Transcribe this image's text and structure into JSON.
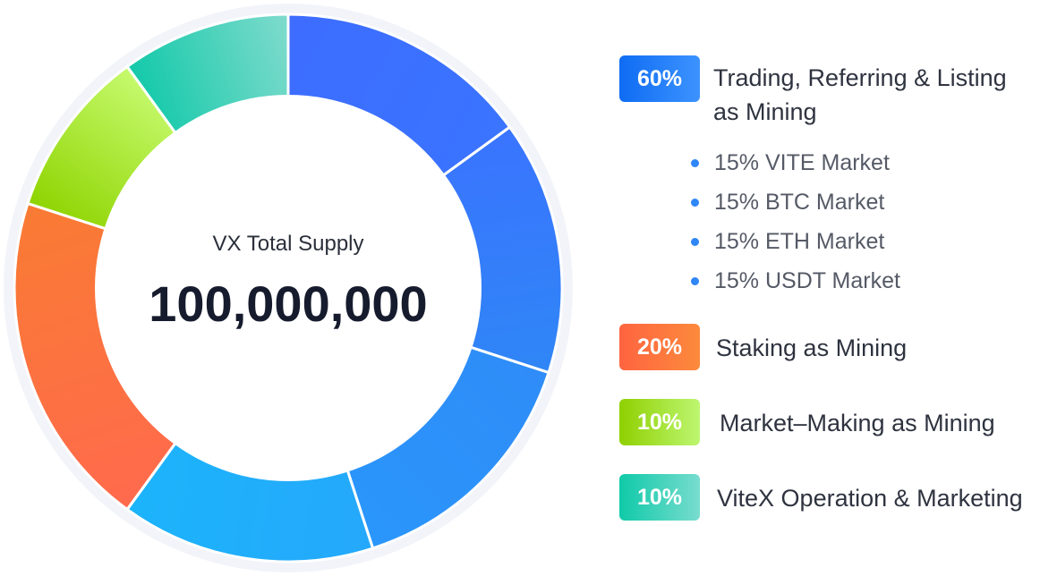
{
  "chart_data": {
    "type": "pie",
    "variant": "donut",
    "center": {
      "label": "VX Total Supply",
      "value": "100,000,000"
    },
    "slices": [
      {
        "name": "VITE Market",
        "value": 15,
        "color_from": "#3d6cff",
        "color_to": "#3a74ff"
      },
      {
        "name": "BTC Market",
        "value": 15,
        "color_from": "#3a74ff",
        "color_to": "#2f86f6"
      },
      {
        "name": "ETH Market",
        "value": 15,
        "color_from": "#2f8cf8",
        "color_to": "#2a96fb"
      },
      {
        "name": "USDT Market",
        "value": 15,
        "color_from": "#25a8fb",
        "color_to": "#1cb4fb"
      },
      {
        "name": "Staking as Mining",
        "value": 20,
        "color_from": "#ff6a4d",
        "color_to": "#f97b33"
      },
      {
        "name": "Market-Making as Mining",
        "value": 10,
        "color_from": "#8ed400",
        "color_to": "#c6fa6e"
      },
      {
        "name": "ViteX Operation & Marketing",
        "value": 10,
        "color_from": "#12c9a9",
        "color_to": "#80dbcd"
      }
    ],
    "legend": [
      {
        "percent": "60%",
        "label_lines": [
          "Trading, Referring & Listing",
          "as Mining"
        ],
        "color_from": "#0f6cf3",
        "color_to": "#3c93ff",
        "sub_items": [
          "15% VITE Market",
          "15% BTC Market",
          "15% ETH Market",
          "15% USDT Market"
        ]
      },
      {
        "percent": "20%",
        "label_lines": [
          "Staking as Mining"
        ],
        "color_from": "#ff6440",
        "color_to": "#fc8a3c"
      },
      {
        "percent": "10%",
        "label_lines": [
          "Market–Making as Mining"
        ],
        "color_from": "#8fd000",
        "color_to": "#bdf671"
      },
      {
        "percent": "10%",
        "label_lines": [
          "ViteX Operation & Marketing"
        ],
        "color_from": "#0fcaa8",
        "color_to": "#78dccf"
      }
    ],
    "colors": {
      "ring_background": "#f2f4f9",
      "separator": "#ffffff",
      "bullet": "#2f86f6"
    }
  }
}
